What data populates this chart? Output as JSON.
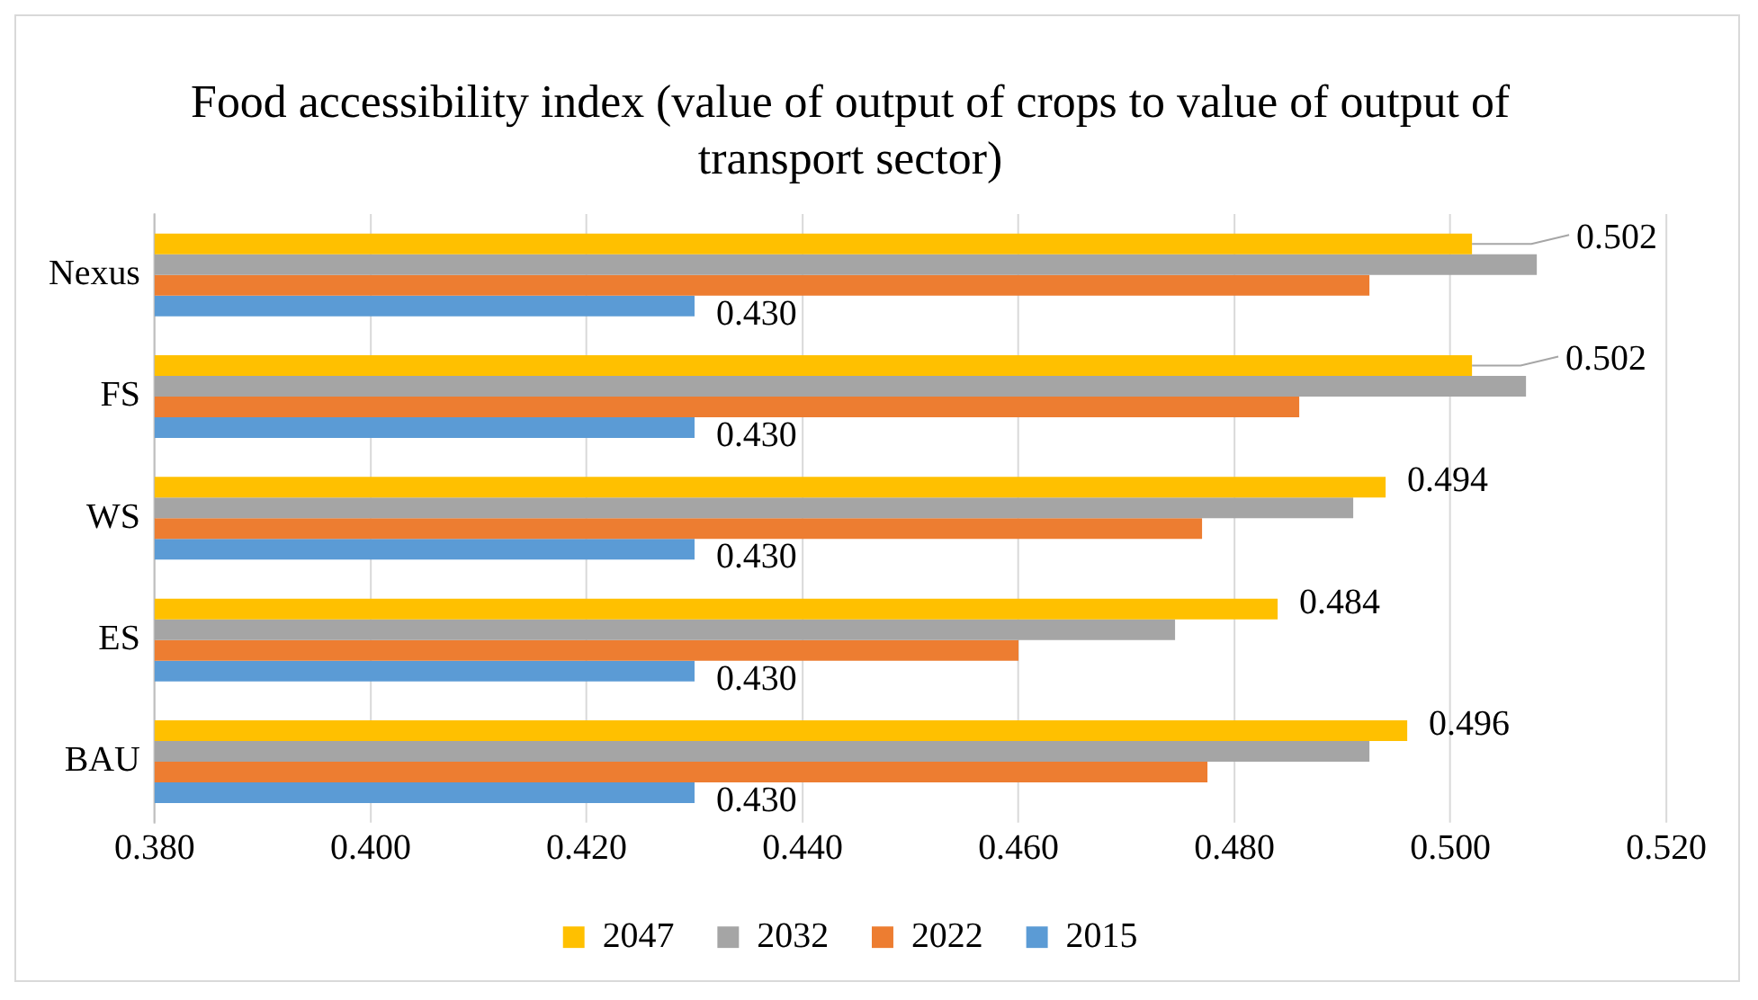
{
  "chart_data": {
    "type": "bar",
    "orientation": "horizontal",
    "title": "Food accessibility index (value of output of crops to value of output of transport sector)",
    "categories": [
      "Nexus",
      "FS",
      "WS",
      "ES",
      "BAU"
    ],
    "series": [
      {
        "name": "2047",
        "color": "#ffc000",
        "values": [
          0.502,
          0.502,
          0.494,
          0.484,
          0.496
        ],
        "value_labels": [
          "0.502",
          "0.502",
          "0.494",
          "0.484",
          "0.496"
        ]
      },
      {
        "name": "2032",
        "color": "#a5a5a5",
        "values": [
          0.508,
          0.507,
          0.491,
          0.4745,
          0.4925
        ]
      },
      {
        "name": "2022",
        "color": "#ed7d31",
        "values": [
          0.4925,
          0.486,
          0.477,
          0.46,
          0.4775
        ]
      },
      {
        "name": "2015",
        "color": "#5b9bd5",
        "values": [
          0.43,
          0.43,
          0.43,
          0.43,
          0.43
        ],
        "value_labels": [
          "0.430",
          "0.430",
          "0.430",
          "0.430",
          "0.430"
        ]
      }
    ],
    "xlim": [
      0.38,
      0.52
    ],
    "xticks": [
      {
        "value": 0.38,
        "label": "0.380"
      },
      {
        "value": 0.4,
        "label": "0.400"
      },
      {
        "value": 0.42,
        "label": "0.420"
      },
      {
        "value": 0.44,
        "label": "0.440"
      },
      {
        "value": 0.46,
        "label": "0.460"
      },
      {
        "value": 0.48,
        "label": "0.480"
      },
      {
        "value": 0.5,
        "label": "0.500"
      },
      {
        "value": 0.52,
        "label": "0.520"
      }
    ],
    "grid": "x",
    "legend": "bottom"
  }
}
